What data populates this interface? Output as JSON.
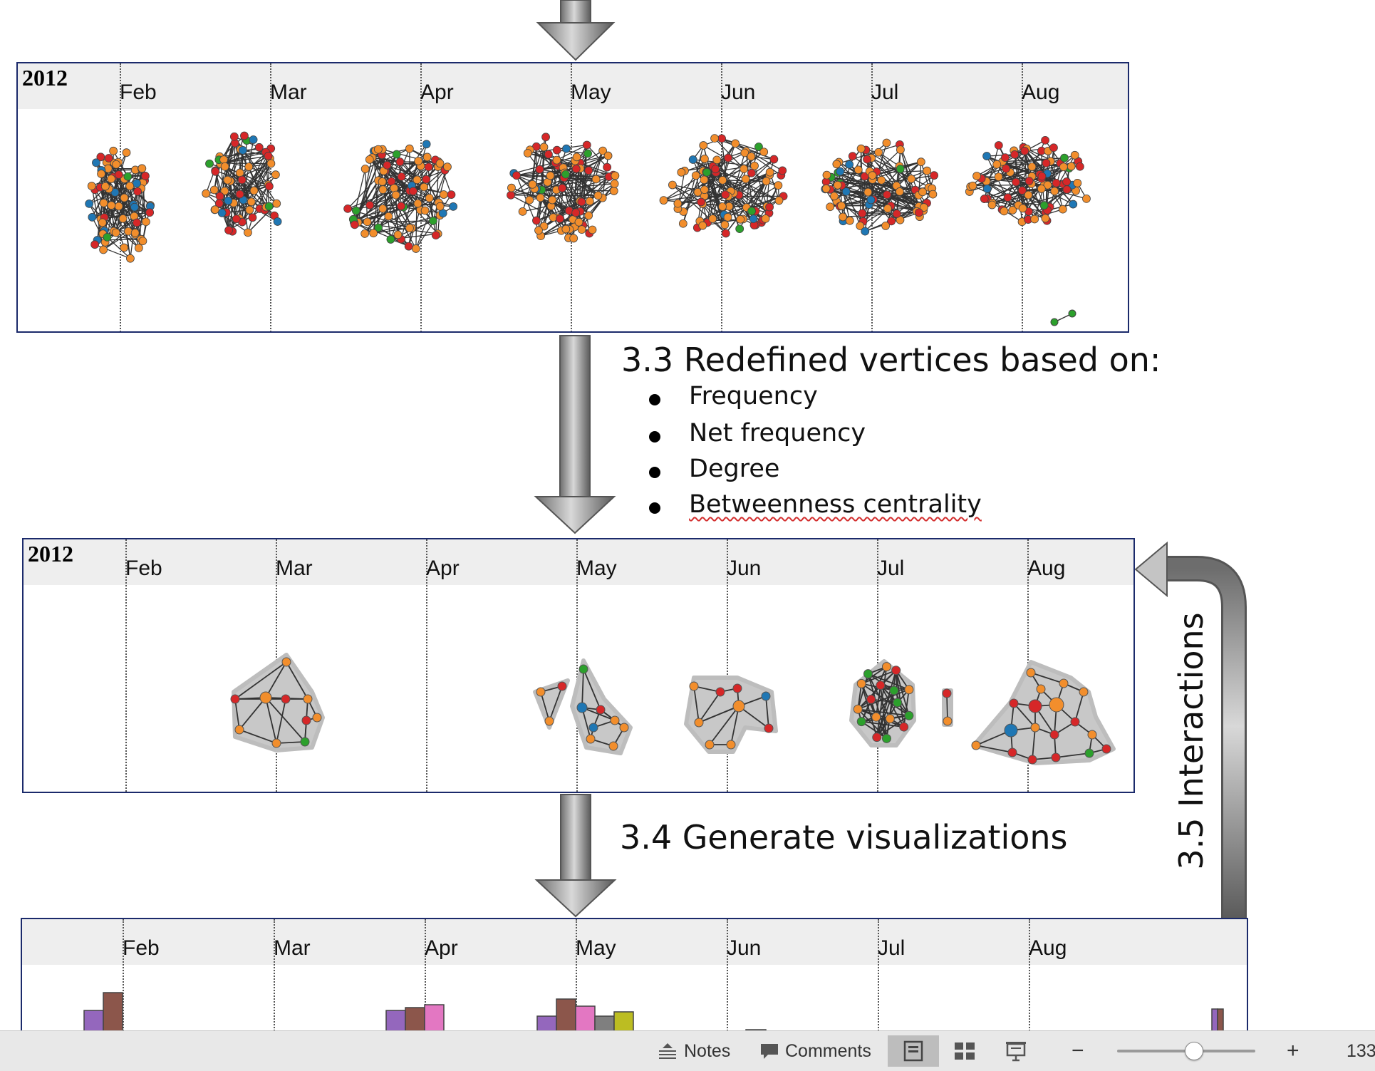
{
  "panels": {
    "p1": {
      "year": "2012",
      "months": [
        "Feb",
        "Mar",
        "Apr",
        "May",
        "Jun",
        "Jul",
        "Aug"
      ]
    },
    "p2": {
      "year": "2012",
      "months": [
        "Feb",
        "Mar",
        "Apr",
        "May",
        "Jun",
        "Jul",
        "Aug"
      ]
    },
    "p3": {
      "months": [
        "Feb",
        "Mar",
        "Apr",
        "May",
        "Jun",
        "Jul",
        "Aug"
      ]
    }
  },
  "steps": {
    "s33": {
      "title": "3.3 Redefined vertices based on:",
      "bullets": [
        "Frequency",
        "Net frequency",
        "Degree",
        "Betweenness centrality"
      ]
    },
    "s34": {
      "title": "3.4 Generate visualizations"
    },
    "s35": {
      "title": "3.5 Interactions"
    }
  },
  "node_colors": {
    "orange": "#f28e2c",
    "red": "#d62728",
    "blue": "#1f77b4",
    "green": "#2ca02c"
  },
  "bar_colors": {
    "purple": "#9467bd",
    "brown": "#8c564b",
    "pink": "#e377c2",
    "gray": "#7f7f7f",
    "olive": "#bcbd22"
  },
  "statusbar": {
    "notes_label": "Notes",
    "comments_label": "Comments",
    "zoom_out": "−",
    "zoom_in": "+",
    "zoom_value": "133"
  }
}
